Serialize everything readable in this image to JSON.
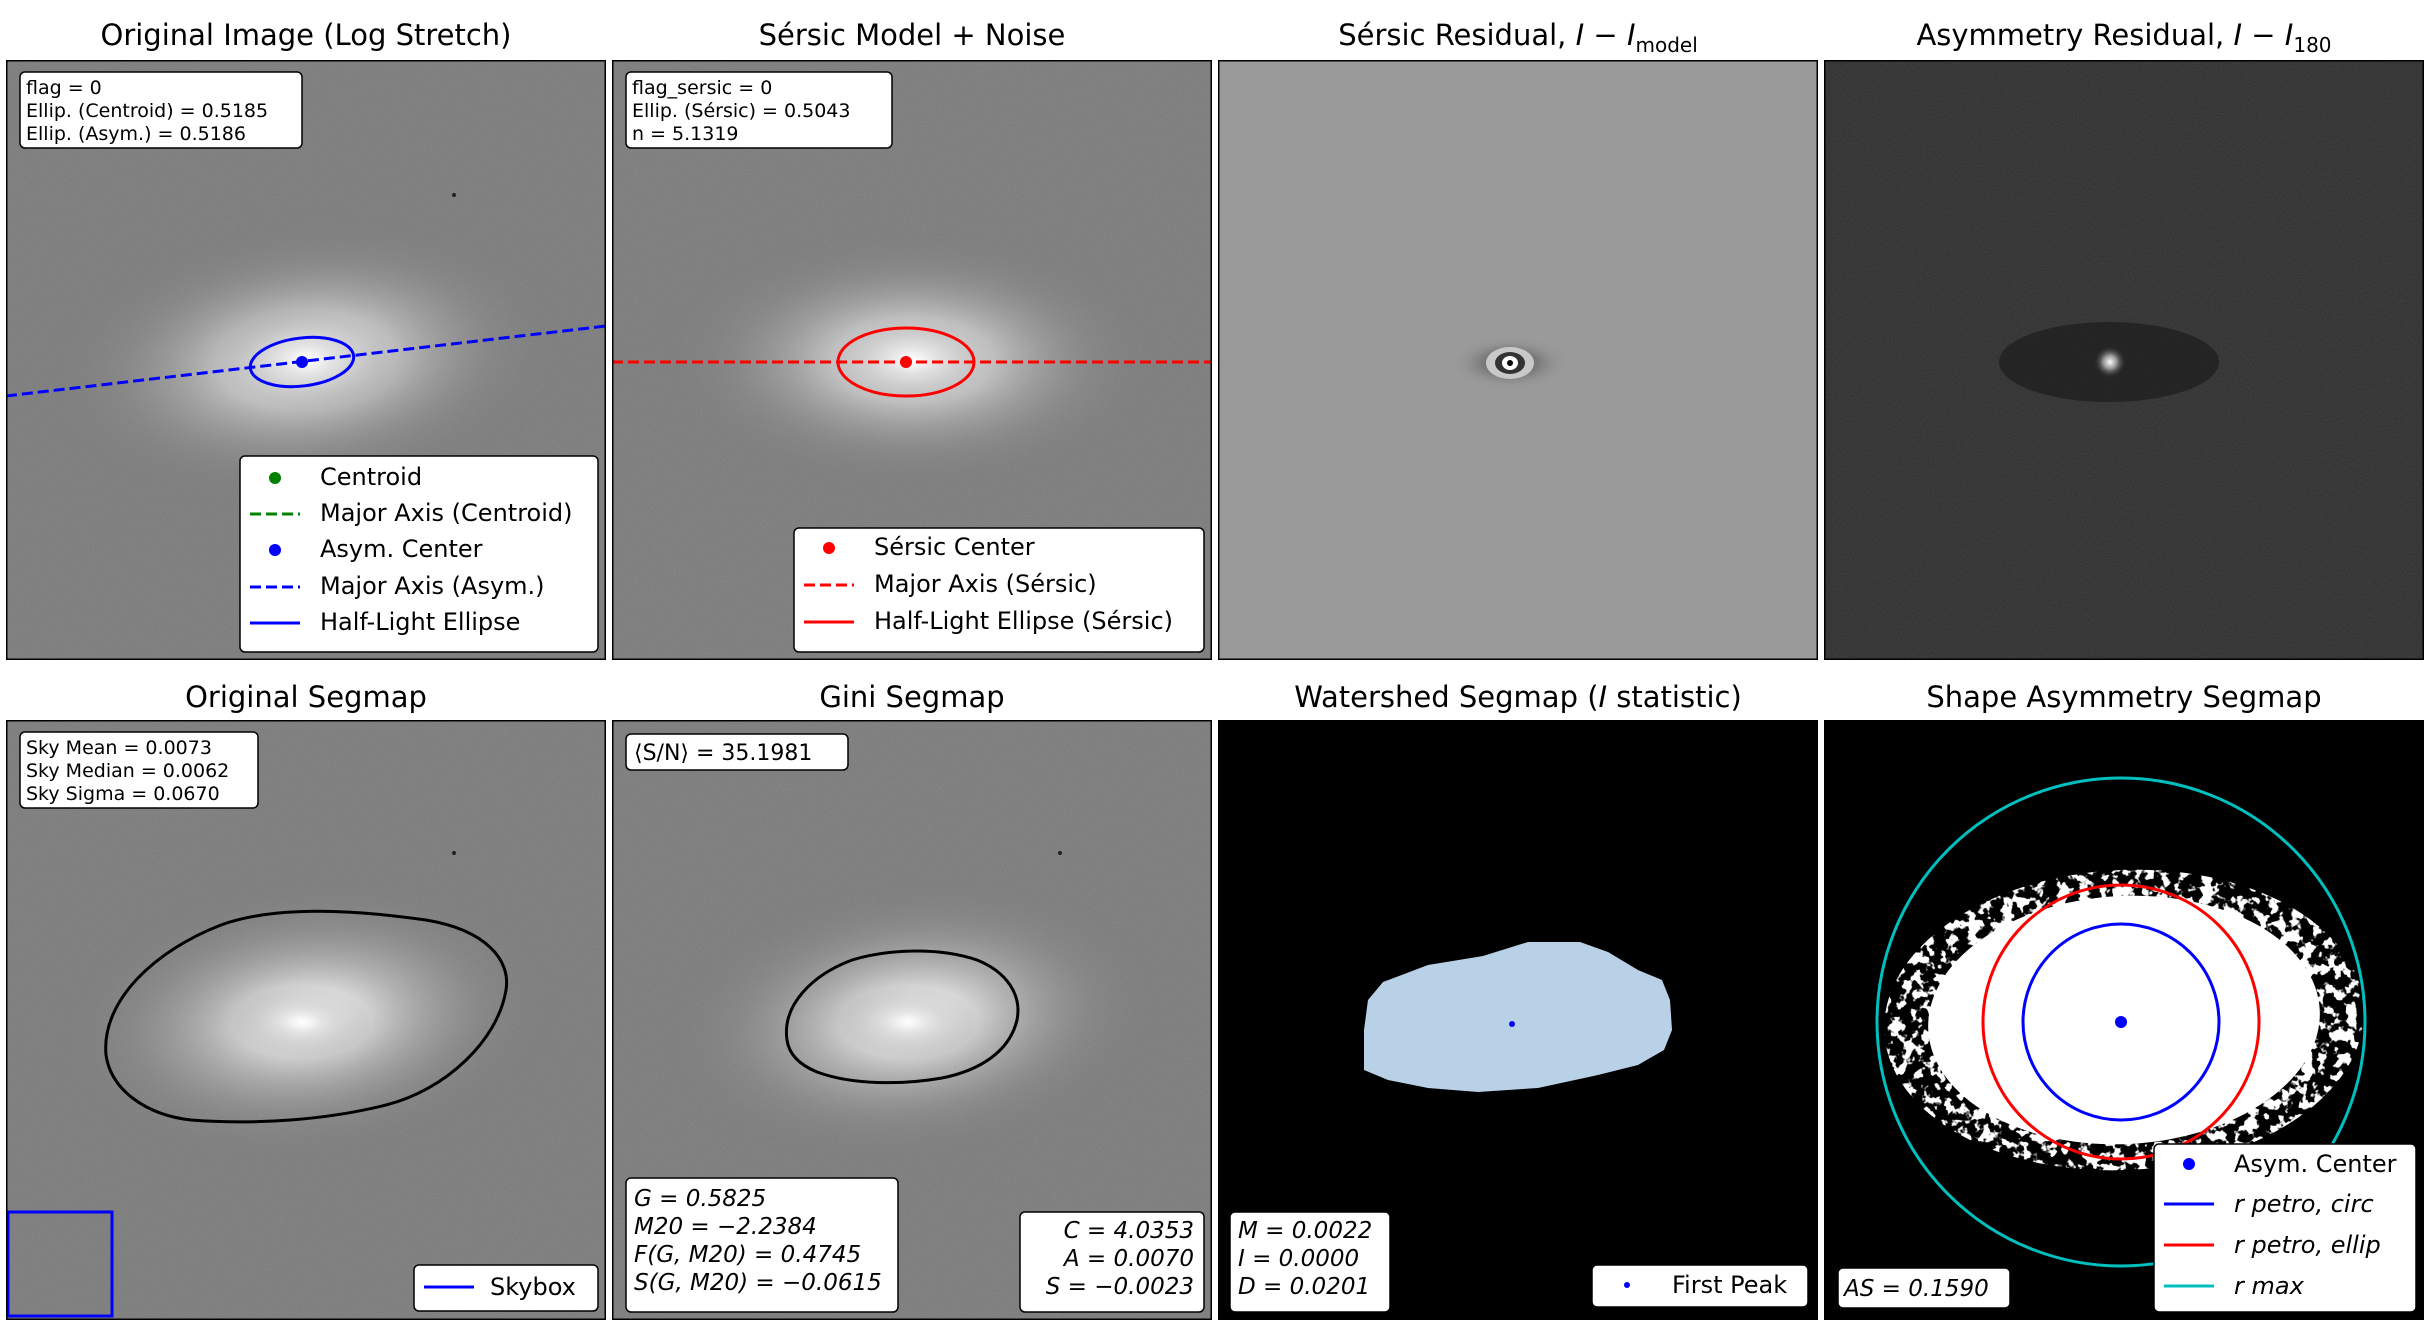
{
  "panels": {
    "p1": {
      "title": "Original Image (Log Stretch)",
      "info": [
        "flag = 0",
        "Ellip. (Centroid) = 0.5185",
        "Ellip. (Asym.) = 0.5186"
      ],
      "legend": [
        "Centroid",
        "Major Axis (Centroid)",
        "Asym. Center",
        "Major Axis (Asym.)",
        "Half-Light Ellipse"
      ]
    },
    "p2": {
      "title": "Sérsic Model + Noise",
      "info": [
        "flag_sersic = 0",
        "Ellip. (Sérsic) = 0.5043",
        "n = 5.1319"
      ],
      "legend": [
        "Sérsic Center",
        "Major Axis (Sérsic)",
        "Half-Light Ellipse (Sérsic)"
      ]
    },
    "p3": {
      "title_prefix": "Sérsic Residual, ",
      "title_I": "I",
      "title_minus": " − ",
      "title_sub": "model"
    },
    "p4": {
      "title_prefix": "Asymmetry Residual, ",
      "title_I": "I",
      "title_minus": " − ",
      "title_sub": "180"
    },
    "p5": {
      "title": "Original Segmap",
      "info": [
        "Sky Mean = 0.0073",
        "Sky Median = 0.0062",
        "Sky Sigma = 0.0670"
      ],
      "legend": [
        "Skybox"
      ]
    },
    "p6": {
      "title": "Gini Segmap",
      "snr": "⟨S/N⟩ = 35.1981",
      "stats_left": [
        "G = 0.5825",
        "M20 = −2.2384",
        "F(G, M20) = 0.4745",
        "S(G, M20) = −0.0615"
      ],
      "stats_right": [
        "C = 4.0353",
        "A = 0.0070",
        "S = −0.0023"
      ]
    },
    "p7": {
      "title_prefix": "Watershed Segmap (",
      "title_I": "I",
      "title_suffix": " statistic)",
      "stats": [
        "M = 0.0022",
        "I = 0.0000",
        "D = 0.0201"
      ],
      "legend": [
        "First Peak"
      ]
    },
    "p8": {
      "title": "Shape Asymmetry Segmap",
      "stat": "AS = 0.1590",
      "legend": [
        "Asym. Center",
        "r petro, circ",
        "r petro, ellip",
        "r max"
      ]
    }
  },
  "colors": {
    "centroid": "#008000",
    "asym": "#0000ff",
    "sersic": "#ff0000",
    "rmax": "#00bfbf",
    "segmap": "#b9d1e6"
  }
}
